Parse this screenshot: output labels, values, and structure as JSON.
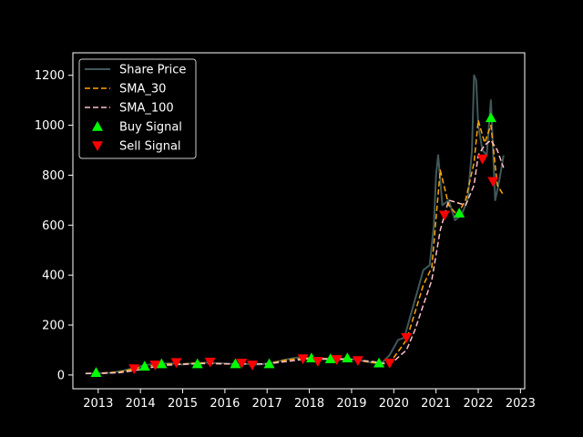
{
  "chart_data": {
    "type": "line",
    "title": "",
    "xlabel": "",
    "ylabel": "",
    "xlim": [
      2012.4,
      2023.1
    ],
    "ylim": [
      -55,
      1290
    ],
    "grid": false,
    "legend_position": "top-left",
    "x_ticks": [
      "2013",
      "2014",
      "2015",
      "2016",
      "2017",
      "2018",
      "2019",
      "2020",
      "2021",
      "2022",
      "2023"
    ],
    "y_ticks": [
      0,
      200,
      400,
      600,
      800,
      1000,
      1200
    ],
    "legend": [
      {
        "label": "Share Price",
        "kind": "line-solid",
        "color": "#41585a"
      },
      {
        "label": "SMA_30",
        "kind": "line-dashed",
        "color": "#ffa500"
      },
      {
        "label": "SMA_100",
        "kind": "line-dashed",
        "color": "#ffc0cb"
      },
      {
        "label": "Buy Signal",
        "kind": "marker-up",
        "color": "#00ff00"
      },
      {
        "label": "Sell Signal",
        "kind": "marker-down",
        "color": "#ff0000"
      }
    ],
    "series": [
      {
        "name": "Share Price",
        "color": "#41585a",
        "x": [
          2012.7,
          2013.0,
          2013.3,
          2013.6,
          2013.9,
          2014.1,
          2014.4,
          2014.7,
          2015.0,
          2015.3,
          2015.6,
          2015.9,
          2016.2,
          2016.5,
          2016.8,
          2017.1,
          2017.4,
          2017.7,
          2017.9,
          2018.2,
          2018.5,
          2018.8,
          2019.1,
          2019.4,
          2019.7,
          2019.9,
          2020.1,
          2020.25,
          2020.4,
          2020.55,
          2020.7,
          2020.85,
          2020.95,
          2021.0,
          2021.05,
          2021.15,
          2021.3,
          2021.45,
          2021.6,
          2021.75,
          2021.85,
          2021.9,
          2021.95,
          2022.0,
          2022.1,
          2022.2,
          2022.3,
          2022.4,
          2022.5,
          2022.6
        ],
        "values": [
          6,
          7,
          9,
          18,
          30,
          40,
          45,
          47,
          42,
          48,
          50,
          47,
          44,
          45,
          42,
          48,
          60,
          70,
          68,
          65,
          60,
          66,
          62,
          52,
          45,
          80,
          140,
          150,
          240,
          330,
          420,
          440,
          600,
          800,
          880,
          680,
          700,
          620,
          640,
          700,
          900,
          1200,
          1180,
          1000,
          900,
          880,
          1100,
          700,
          780,
          880
        ]
      },
      {
        "name": "SMA_30",
        "color": "#ffa500",
        "x": [
          2012.7,
          2013.0,
          2013.5,
          2014.0,
          2014.5,
          2015.0,
          2015.5,
          2016.0,
          2016.5,
          2017.0,
          2017.5,
          2018.0,
          2018.5,
          2019.0,
          2019.5,
          2019.8,
          2020.0,
          2020.3,
          2020.5,
          2020.7,
          2020.9,
          2021.1,
          2021.3,
          2021.5,
          2021.7,
          2021.9,
          2022.0,
          2022.15,
          2022.3,
          2022.45,
          2022.6
        ],
        "values": [
          6,
          7,
          12,
          30,
          43,
          45,
          48,
          44,
          44,
          45,
          62,
          68,
          64,
          62,
          50,
          45,
          70,
          140,
          250,
          360,
          430,
          820,
          680,
          640,
          700,
          850,
          1020,
          930,
          1000,
          760,
          720
        ]
      },
      {
        "name": "SMA_100",
        "color": "#ffc0cb",
        "x": [
          2012.7,
          2013.0,
          2013.5,
          2014.0,
          2014.5,
          2015.0,
          2015.5,
          2016.0,
          2016.5,
          2017.0,
          2017.5,
          2018.0,
          2018.5,
          2019.0,
          2019.5,
          2019.8,
          2020.0,
          2020.3,
          2020.5,
          2020.7,
          2020.9,
          2021.1,
          2021.3,
          2021.5,
          2021.7,
          2021.9,
          2022.0,
          2022.15,
          2022.3,
          2022.45,
          2022.6
        ],
        "values": [
          6,
          6,
          9,
          22,
          38,
          43,
          46,
          45,
          44,
          44,
          55,
          66,
          65,
          62,
          54,
          46,
          55,
          100,
          180,
          280,
          380,
          580,
          700,
          690,
          680,
          760,
          880,
          920,
          940,
          900,
          830
        ]
      }
    ],
    "buy_signals": {
      "color": "#00ff00",
      "x": [
        2012.95,
        2014.1,
        2014.5,
        2015.35,
        2016.25,
        2017.05,
        2018.05,
        2018.5,
        2018.9,
        2019.65,
        2021.55,
        2022.3
      ],
      "values": [
        10,
        35,
        45,
        45,
        45,
        45,
        68,
        65,
        68,
        48,
        648,
        1030
      ]
    },
    "sell_signals": {
      "color": "#ff0000",
      "x": [
        2013.85,
        2014.35,
        2014.85,
        2015.65,
        2016.4,
        2016.65,
        2017.85,
        2018.2,
        2018.65,
        2019.15,
        2019.9,
        2020.3,
        2021.2,
        2022.1,
        2022.35
      ],
      "values": [
        25,
        40,
        50,
        52,
        48,
        40,
        65,
        55,
        62,
        58,
        48,
        150,
        640,
        865,
        775
      ]
    }
  }
}
